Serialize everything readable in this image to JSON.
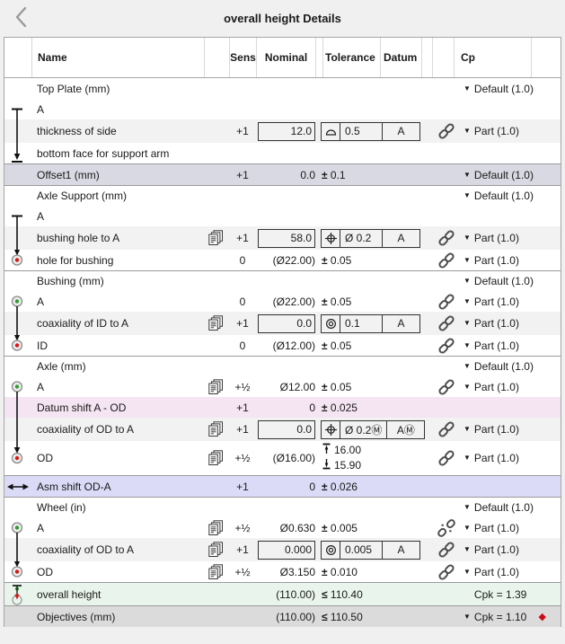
{
  "header": {
    "title": "overall height Details"
  },
  "columns": {
    "name": "Name",
    "sens": "Sens",
    "nominal": "Nominal",
    "tolerance": "Tolerance",
    "datum": "Datum",
    "cp": "Cp"
  },
  "icons": {
    "back": "chevron-left",
    "copy": "stacked-sheets",
    "link": "chain-link",
    "broken": "broken-chain-link",
    "dropdown": "▼",
    "diamond": "◆",
    "pm": "±",
    "le": "≤"
  },
  "colors": {
    "row_offset": "#d9d9e3",
    "row_pink": "#f5e5f2",
    "row_periwinkle": "#dbdbf7",
    "row_green": "#e9f5ec",
    "row_gray": "#dbdbdb",
    "dot_green": "#2f9e2f",
    "dot_red": "#d91616",
    "diamond_red": "#cc0a18"
  },
  "rows": [
    {
      "name": "Top Plate (mm)",
      "group": true,
      "cp": "Default (1.0)",
      "cpArrow": true
    },
    {
      "name": "A",
      "rail": "tbar"
    },
    {
      "name": "thickness of side",
      "bg": "alt",
      "rail": "line",
      "sens": "+1",
      "tol": {
        "mode": "fcf",
        "sym": "profile",
        "nominal": "12.0",
        "value": "0.5",
        "datum": "A"
      },
      "link": "link",
      "cp": "Part (1.0)",
      "cpArrow": true
    },
    {
      "name": "bottom face for support arm",
      "rail": "arrowbar"
    },
    {
      "name": "Offset1 (mm)",
      "bg": "offset",
      "sep": true,
      "sens": "+1",
      "tol": {
        "mode": "pm",
        "nominal": "0.0",
        "value": "0.1"
      },
      "cp": "Default (1.0)",
      "cpArrow": true
    },
    {
      "name": "Axle Support (mm)",
      "group": true,
      "sep": true,
      "cp": "Default (1.0)",
      "cpArrow": true
    },
    {
      "name": "A",
      "rail": "tbar"
    },
    {
      "name": "bushing hole to A",
      "bg": "alt",
      "rail": "line",
      "copy": true,
      "sens": "+1",
      "tol": {
        "mode": "fcf",
        "sym": "position",
        "nominal": "58.0",
        "value": "Ø 0.2",
        "datum": "A"
      },
      "link": "link",
      "cp": "Part (1.0)",
      "cpArrow": true
    },
    {
      "name": "hole for bushing",
      "rail": "rend",
      "sens": "0",
      "tol": {
        "mode": "pm",
        "nominal": "(Ø22.00)",
        "value": "0.05"
      },
      "link": "link",
      "cp": "Part (1.0)",
      "cpArrow": true
    },
    {
      "name": "Bushing (mm)",
      "group": true,
      "sep": true,
      "cp": "Default (1.0)",
      "cpArrow": true
    },
    {
      "name": "A",
      "rail": "gstart",
      "sens": "0",
      "tol": {
        "mode": "pm",
        "nominal": "(Ø22.00)",
        "value": "0.05"
      },
      "link": "link",
      "cp": "Part (1.0)",
      "cpArrow": true
    },
    {
      "name": "coaxiality of ID to A",
      "bg": "alt",
      "rail": "line",
      "copy": true,
      "sens": "+1",
      "tol": {
        "mode": "fcf",
        "sym": "concentric",
        "nominal": "0.0",
        "value": "0.1",
        "datum": "A"
      },
      "link": "link",
      "cp": "Part (1.0)",
      "cpArrow": true
    },
    {
      "name": "ID",
      "rail": "rend",
      "sens": "0",
      "tol": {
        "mode": "pm",
        "nominal": "(Ø12.00)",
        "value": "0.05"
      },
      "link": "link",
      "cp": "Part (1.0)",
      "cpArrow": true
    },
    {
      "name": "Axle (mm)",
      "group": true,
      "sep": true,
      "cp": "Default (1.0)",
      "cpArrow": true
    },
    {
      "name": "A",
      "rail": "gstart",
      "copy": true,
      "sens": "+½",
      "tol": {
        "mode": "pm",
        "nominal": "Ø12.00",
        "value": "0.05"
      },
      "link": "link",
      "cp": "Part (1.0)",
      "cpArrow": true
    },
    {
      "name": "Datum shift A - OD",
      "bg": "pink",
      "rail": "line",
      "sens": "+1",
      "tol": {
        "mode": "pm",
        "nominal": "0",
        "value": "0.025"
      }
    },
    {
      "name": "coaxiality of OD to A",
      "bg": "alt",
      "rail": "line",
      "copy": true,
      "sens": "+1",
      "tol": {
        "mode": "fcf",
        "sym": "position",
        "nominal": "0.0",
        "value": "Ø 0.2Ⓜ",
        "datum": "AⓂ"
      },
      "link": "link",
      "cp": "Part (1.0)",
      "cpArrow": true
    },
    {
      "name": "OD",
      "rail": "rend",
      "copy": true,
      "sens": "+½",
      "tall": true,
      "tol": {
        "mode": "limits",
        "nominal": "(Ø16.00)",
        "hi": "16.00",
        "lo": "15.90"
      },
      "link": "link",
      "cp": "Part (1.0)",
      "cpArrow": true
    },
    {
      "name": "Asm shift OD-A",
      "bg": "peri",
      "sep": true,
      "rail": "dbl",
      "sens": "+1",
      "tol": {
        "mode": "pm",
        "nominal": "0",
        "value": "0.026"
      }
    },
    {
      "name": "Wheel (in)",
      "group": true,
      "sep": true,
      "cp": "Default (1.0)",
      "cpArrow": true
    },
    {
      "name": "A",
      "rail": "gstart",
      "copy": true,
      "sens": "+½",
      "tol": {
        "mode": "pm",
        "nominal": "Ø0.630",
        "value": "0.005"
      },
      "link": "broken",
      "cp": "Part (1.0)",
      "cpArrow": true
    },
    {
      "name": "coaxiality of OD to A",
      "bg": "alt",
      "rail": "line",
      "copy": true,
      "sens": "+1",
      "tol": {
        "mode": "fcf",
        "sym": "concentric",
        "nominal": "0.000",
        "value": "0.005",
        "datum": "A"
      },
      "link": "link",
      "cp": "Part (1.0)",
      "cpArrow": true
    },
    {
      "name": "OD",
      "rail": "rend",
      "copy": true,
      "sens": "+½",
      "tol": {
        "mode": "pm",
        "nominal": "Ø3.150",
        "value": "0.010"
      },
      "link": "link",
      "cp": "Part (1.0)",
      "cpArrow": true
    },
    {
      "name": "overall height",
      "bg": "green",
      "sep": true,
      "rail": "measure",
      "tol": {
        "mode": "le",
        "nominal": "(110.00)",
        "value": "110.40"
      },
      "cp": "Cpk = 1.39",
      "cpArrow": false
    },
    {
      "name": "Objectives (mm)",
      "bg": "gray",
      "sep": true,
      "tol": {
        "mode": "le",
        "nominal": "(110.00)",
        "value": "110.50"
      },
      "cp": "Cpk = 1.10",
      "cpArrow": true,
      "diamond": true
    }
  ]
}
